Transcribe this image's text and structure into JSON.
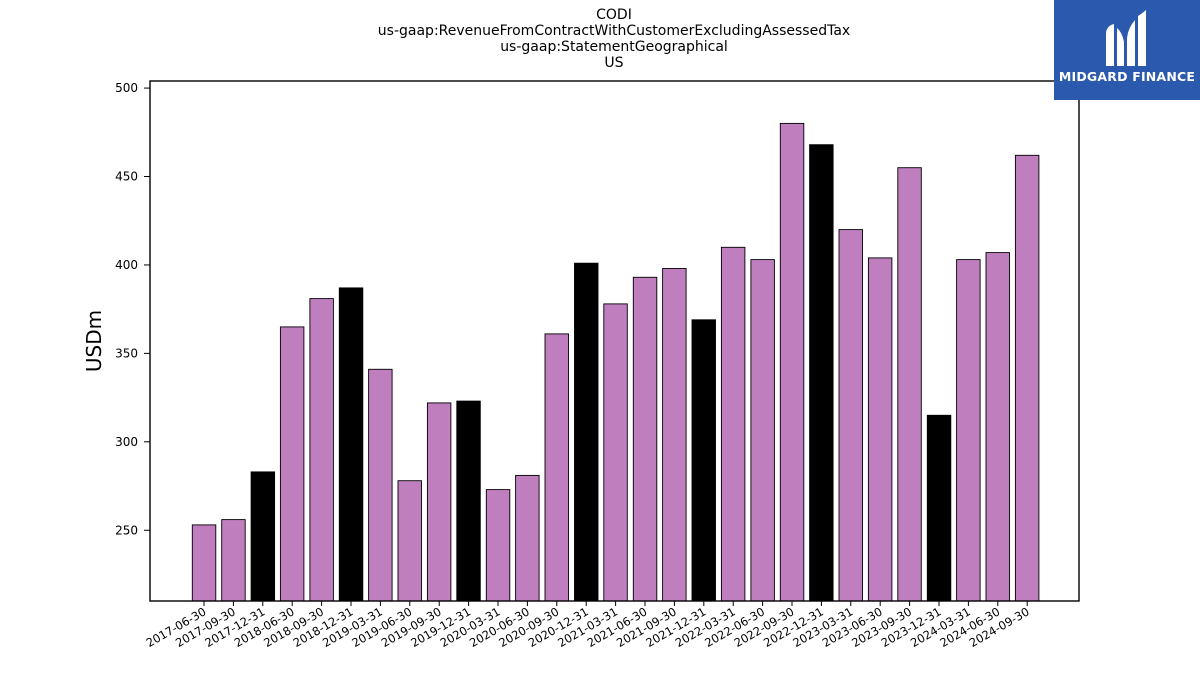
{
  "title_lines": [
    "CODI",
    "us-gaap:RevenueFromContractWithCustomerExcludingAssessedTax",
    "us-gaap:StatementGeographical",
    "US"
  ],
  "logo": {
    "text": "MIDGARD FINANCE",
    "icon": "midgard-logo-icon"
  },
  "colors": {
    "normal_bar": "#bf7fbf",
    "highlight_bar": "#000000",
    "edge": "#000000",
    "logo_bg": "#2b59ad"
  },
  "chart_data": {
    "type": "bar",
    "title": "CODI us-gaap:RevenueFromContractWithCustomerExcludingAssessedTax us-gaap:StatementGeographical US",
    "xlabel": "",
    "ylabel": "USDm",
    "ylim": [
      210,
      504
    ],
    "yticks": [
      250,
      300,
      350,
      400,
      450,
      500
    ],
    "grid": false,
    "categories": [
      "2017-06-30",
      "2017-09-30",
      "2017-12-31",
      "2018-06-30",
      "2018-09-30",
      "2018-12-31",
      "2019-03-31",
      "2019-06-30",
      "2019-09-30",
      "2019-12-31",
      "2020-03-31",
      "2020-06-30",
      "2020-09-30",
      "2020-12-31",
      "2021-03-31",
      "2021-06-30",
      "2021-09-30",
      "2021-12-31",
      "2022-03-31",
      "2022-06-30",
      "2022-09-30",
      "2022-12-31",
      "2023-03-31",
      "2023-06-30",
      "2023-09-30",
      "2023-12-31",
      "2024-03-31",
      "2024-06-30",
      "2024-09-30"
    ],
    "values": [
      253,
      256,
      283,
      365,
      381,
      387,
      341,
      278,
      322,
      323,
      273,
      281,
      361,
      401,
      378,
      393,
      398,
      369,
      410,
      403,
      480,
      468,
      420,
      404,
      455,
      315,
      403,
      407,
      462
    ],
    "highlighted": [
      false,
      false,
      true,
      false,
      false,
      true,
      false,
      false,
      false,
      true,
      false,
      false,
      false,
      true,
      false,
      false,
      false,
      true,
      false,
      false,
      false,
      true,
      false,
      false,
      false,
      true,
      false,
      false,
      false
    ]
  }
}
